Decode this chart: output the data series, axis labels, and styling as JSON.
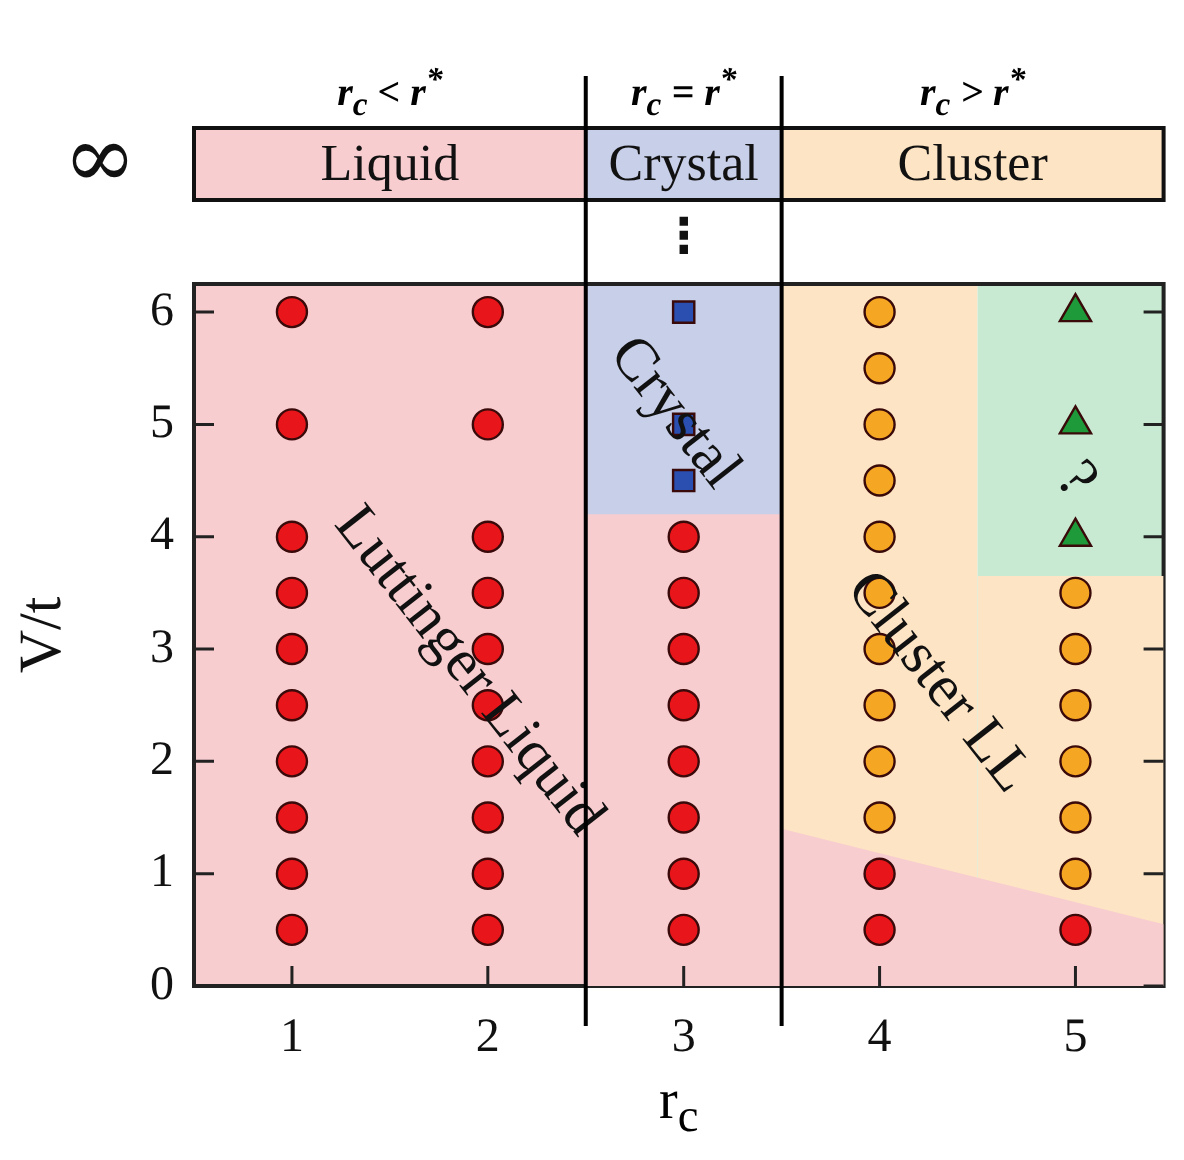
{
  "chart_data": {
    "type": "scatter",
    "xlabel": "r$_{c}$",
    "ylabel": "V/t",
    "xlim": [
      0.5,
      5.45
    ],
    "ylim": [
      0,
      6.25
    ],
    "xticks": [
      1,
      2,
      3,
      4,
      5
    ],
    "yticks": [
      0,
      1,
      2,
      3,
      4,
      5,
      6
    ],
    "legend": false,
    "series": [
      {
        "type": "area",
        "color": "#f8cdd0",
        "x": [
          2.5,
          3.5
        ],
        "values": [
          4.2,
          4.2
        ]
      },
      {
        "type": "area",
        "color": "#fde4c4",
        "x": [
          4.5,
          5.45
        ],
        "values": [
          3.65,
          3.65
        ]
      },
      {
        "type": "area",
        "color": "#f8cdd0",
        "x": [
          3.5,
          5.45
        ],
        "values": [
          1.4,
          0.55
        ]
      },
      {
        "color": "#e8161b",
        "marker": "circle",
        "x": [
          1,
          1,
          1,
          1,
          1,
          1,
          1,
          1,
          1,
          1,
          2,
          2,
          2,
          2,
          2,
          2,
          2,
          2,
          2,
          2,
          3,
          3,
          3,
          3,
          3,
          3,
          3,
          3,
          4,
          4,
          5
        ],
        "values": [
          0.5,
          1,
          1.5,
          2,
          2.5,
          3,
          3.5,
          4,
          5,
          6,
          0.5,
          1,
          1.5,
          2,
          2.5,
          3,
          3.5,
          4,
          5,
          6,
          0.5,
          1,
          1.5,
          2,
          2.5,
          3,
          3.5,
          4,
          0.5,
          1,
          0.5
        ]
      },
      {
        "color": "#2a4fb0",
        "marker": "square",
        "x": [
          3,
          3,
          3
        ],
        "values": [
          4.5,
          5,
          6
        ]
      },
      {
        "color": "#f5a623",
        "marker": "circle",
        "x": [
          4,
          4,
          4,
          4,
          4,
          4,
          4,
          4,
          4,
          4,
          5,
          5,
          5,
          5,
          5,
          5
        ],
        "values": [
          1.5,
          2,
          2.5,
          3,
          3.5,
          4,
          4.5,
          5,
          5.5,
          6,
          1,
          1.5,
          2,
          2.5,
          3,
          3.5
        ]
      },
      {
        "color": "#1f9a3a",
        "marker": "triangle",
        "x": [
          5,
          5,
          5
        ],
        "values": [
          4,
          5,
          6
        ]
      }
    ],
    "bands": [
      {
        "axis": "x",
        "from": 0.5,
        "to": 2.5,
        "color": "#f8cdd0"
      },
      {
        "axis": "x",
        "from": 2.5,
        "to": 3.5,
        "color": "#c8cfe8"
      },
      {
        "axis": "x",
        "from": 3.5,
        "to": 4.5,
        "color": "#fde4c4"
      },
      {
        "axis": "x",
        "from": 4.5,
        "to": 5.45,
        "color": "#c8ead2"
      }
    ],
    "ref_lines": [
      {
        "axis": "x",
        "value": 2.5,
        "color": "#000000"
      },
      {
        "axis": "x",
        "value": 3.5,
        "color": "#000000"
      }
    ],
    "annotations": [
      "r$_{c}$ < r$^{*}$",
      "r$_{c}$ = r$^{*}$",
      "r$_{c}$ > r$^{*}$",
      "∞",
      "Liquid",
      "Crystal",
      "Cluster",
      "⋮",
      "Luttinger Liquid",
      "Crystal",
      "Cluster LL",
      "?"
    ]
  }
}
